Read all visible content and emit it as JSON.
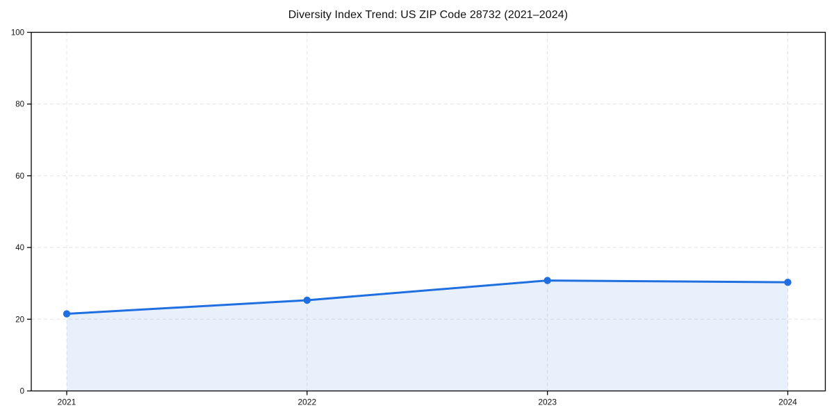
{
  "title": "Diversity Index Trend: US ZIP Code 28732 (2021–2024)",
  "chart_data": {
    "type": "line",
    "x": [
      "2021",
      "2022",
      "2023",
      "2024"
    ],
    "series": [
      {
        "name": "Diversity Index",
        "values": [
          21.5,
          25.3,
          30.8,
          30.3
        ]
      }
    ],
    "title": "Diversity Index Trend: US ZIP Code 28732 (2021–2024)",
    "xlabel": "",
    "ylabel": "",
    "ylim": [
      0,
      100
    ],
    "yticks": [
      0,
      20,
      40,
      60,
      80,
      100
    ],
    "grid": true,
    "grid_style": "dashed",
    "legend": "none",
    "area_fill": true,
    "colors": {
      "line": "#1f6fe0",
      "marker": "#1f6fe0",
      "fill": "rgba(31,111,224,0.10)",
      "grid": "#e4e4e4",
      "axis": "#000000",
      "text": "#111111"
    }
  }
}
